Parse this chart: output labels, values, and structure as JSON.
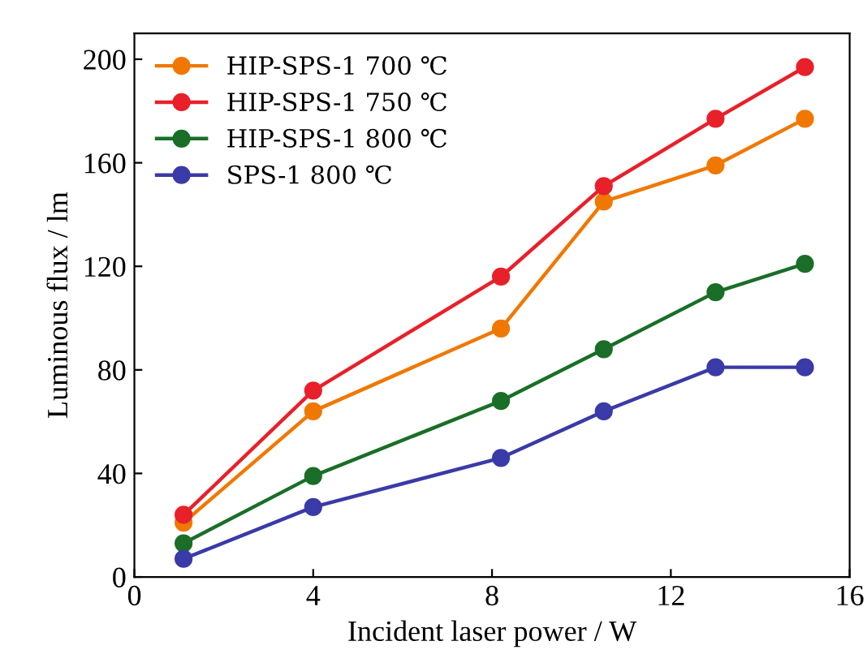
{
  "chart_data": {
    "type": "line",
    "xlabel": "Incident laser power / W",
    "ylabel": "Luminous flux / lm",
    "x": [
      1.1,
      4.0,
      8.2,
      10.5,
      13.0,
      15.0
    ],
    "series": [
      {
        "name": "HIP-SPS-1 700 ℃",
        "color": "#f07800",
        "values": [
          21,
          64,
          96,
          145,
          159,
          177
        ]
      },
      {
        "name": "HIP-SPS-1 750 ℃",
        "color": "#e8202a",
        "values": [
          24,
          72,
          116,
          151,
          177,
          197
        ]
      },
      {
        "name": "HIP-SPS-1 800 ℃",
        "color": "#1a6e28",
        "values": [
          13,
          39,
          68,
          88,
          110,
          121
        ]
      },
      {
        "name": "SPS-1 800 ℃",
        "color": "#3a3aa8",
        "values": [
          7,
          27,
          46,
          64,
          81,
          81
        ]
      }
    ],
    "xlim": [
      0,
      16
    ],
    "xticks": [
      0,
      4,
      8,
      12,
      16
    ],
    "ylim": [
      0,
      210
    ],
    "yticks": [
      0,
      40,
      80,
      120,
      160,
      200
    ],
    "marker": "circle",
    "line_style": "solid",
    "grid": false,
    "legend": "top left"
  }
}
